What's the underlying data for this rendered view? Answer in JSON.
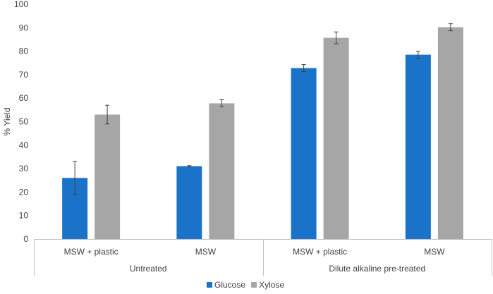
{
  "chart_data": {
    "type": "bar",
    "title": "",
    "xlabel": "",
    "ylabel": "% Yield",
    "ylim": [
      0,
      100
    ],
    "yticks": [
      "0",
      "10",
      "20",
      "30",
      "40",
      "50",
      "60",
      "70",
      "80",
      "90",
      "100"
    ],
    "grid": false,
    "legend_position": "bottom",
    "groups": [
      {
        "label": "Untreated",
        "categories": [
          "MSW + plastic",
          "MSW"
        ]
      },
      {
        "label": "Dilute alkaline pre-treated",
        "categories": [
          "MSW + plastic",
          "MSW"
        ]
      }
    ],
    "categories": [
      "MSW + plastic",
      "MSW",
      "MSW + plastic",
      "MSW"
    ],
    "series": [
      {
        "name": "Glucose",
        "color": "#1a73c8",
        "values": [
          26,
          31,
          72.8,
          78.5
        ],
        "errors": [
          7,
          0.3,
          1.5,
          1.5
        ]
      },
      {
        "name": "Xylose",
        "color": "#a6a6a6",
        "values": [
          53,
          57.8,
          85.7,
          90.2
        ],
        "errors": [
          4,
          1.5,
          2.5,
          1.5
        ]
      }
    ]
  }
}
